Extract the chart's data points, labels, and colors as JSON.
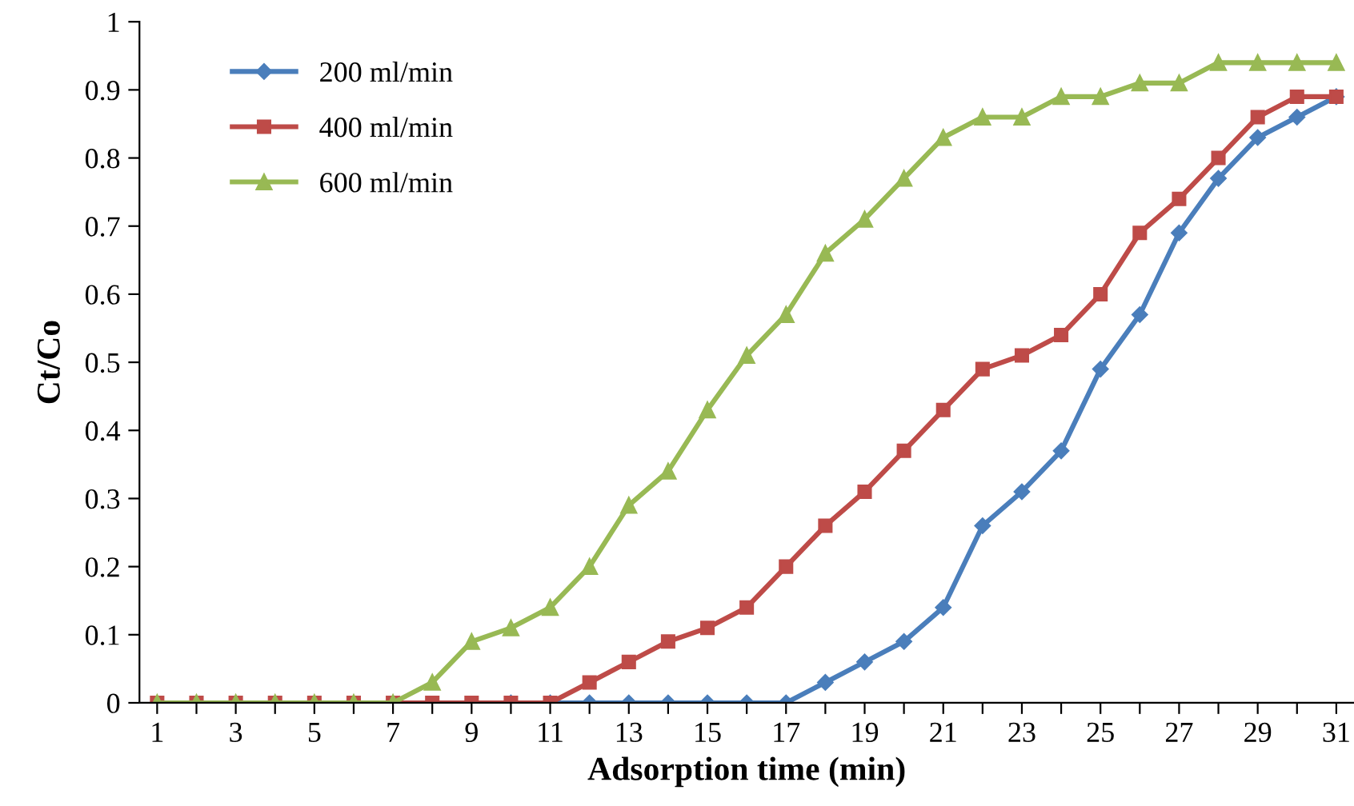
{
  "chart_data": {
    "type": "line",
    "xlabel": "Adsorption time (min)",
    "ylabel": "Ct/Co",
    "x": [
      1,
      2,
      3,
      4,
      5,
      6,
      7,
      8,
      9,
      10,
      11,
      12,
      13,
      14,
      15,
      16,
      17,
      18,
      19,
      20,
      21,
      22,
      23,
      24,
      25,
      26,
      27,
      28,
      29,
      30,
      31
    ],
    "series": [
      {
        "name": "200 ml/min",
        "color": "#4a7ebb",
        "marker": "diamond",
        "values": [
          null,
          null,
          null,
          null,
          null,
          null,
          null,
          null,
          null,
          0,
          0,
          0,
          0,
          0,
          0,
          0,
          0,
          0.03,
          0.06,
          0.09,
          0.14,
          0.26,
          0.31,
          0.37,
          0.49,
          0.57,
          0.69,
          0.77,
          0.83,
          0.86,
          0.89
        ]
      },
      {
        "name": "400 ml/min",
        "color": "#be4b48",
        "marker": "square",
        "values": [
          0,
          0,
          0,
          0,
          0,
          0,
          0,
          0,
          0,
          0,
          0,
          0.03,
          0.06,
          0.09,
          0.11,
          0.14,
          0.2,
          0.26,
          0.31,
          0.37,
          0.43,
          0.49,
          0.51,
          0.54,
          0.6,
          0.69,
          0.74,
          0.8,
          0.86,
          0.89,
          0.89
        ]
      },
      {
        "name": "600 ml/min",
        "color": "#98b954",
        "marker": "triangle",
        "values": [
          0,
          0,
          0,
          0,
          0,
          0,
          0,
          0.03,
          0.09,
          0.11,
          0.14,
          0.2,
          0.29,
          0.34,
          0.43,
          0.51,
          0.57,
          0.66,
          0.71,
          0.77,
          0.83,
          0.86,
          0.86,
          0.89,
          0.89,
          0.91,
          0.91,
          0.94,
          0.94,
          0.94,
          0.94
        ]
      }
    ],
    "xlim": [
      0.55,
      31.45
    ],
    "xticks": [
      1,
      {
        "value": 2,
        "label": null
      },
      3,
      {
        "value": 4,
        "label": null
      },
      5,
      {
        "value": 6,
        "label": null
      },
      7,
      {
        "value": 8,
        "label": null
      },
      9,
      {
        "value": 10,
        "label": null
      },
      11,
      {
        "value": 12,
        "label": null
      },
      13,
      {
        "value": 14,
        "label": null
      },
      15,
      {
        "value": 16,
        "label": null
      },
      17,
      {
        "value": 18,
        "label": null
      },
      19,
      {
        "value": 20,
        "label": null
      },
      21,
      {
        "value": 22,
        "label": null
      },
      23,
      {
        "value": 24,
        "label": null
      },
      25,
      {
        "value": 26,
        "label": null
      },
      27,
      {
        "value": 28,
        "label": null
      },
      29,
      {
        "value": 30,
        "label": null
      },
      31
    ],
    "ylim": [
      0,
      1
    ],
    "yticks": [
      0,
      0.1,
      0.2,
      0.3,
      0.4,
      0.5,
      0.6,
      0.7,
      0.8,
      0.9,
      1
    ],
    "grid": false,
    "legend": "top left",
    "line_style": "solid"
  }
}
